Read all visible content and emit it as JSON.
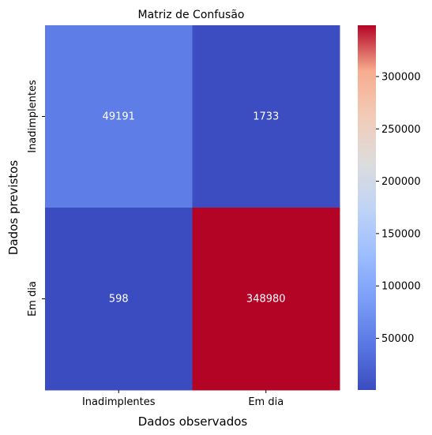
{
  "chart_data": {
    "type": "heatmap",
    "title": "Matriz de Confusão",
    "xlabel": "Dados observados",
    "ylabel": "Dados previstos",
    "x_categories": [
      "Inadimplentes",
      "Em dia"
    ],
    "y_categories": [
      "Inadimplentes",
      "Em dia"
    ],
    "values": [
      [
        49191,
        1733
      ],
      [
        598,
        348980
      ]
    ],
    "value_labels": [
      [
        "49191",
        "1733"
      ],
      [
        "598",
        "348980"
      ]
    ],
    "colormap": "coolwarm",
    "colorbar": {
      "range": [
        598,
        348980
      ],
      "ticks": [
        50000,
        100000,
        150000,
        200000,
        250000,
        300000
      ],
      "tick_labels": [
        "50000",
        "100000",
        "150000",
        "200000",
        "250000",
        "300000"
      ]
    }
  }
}
